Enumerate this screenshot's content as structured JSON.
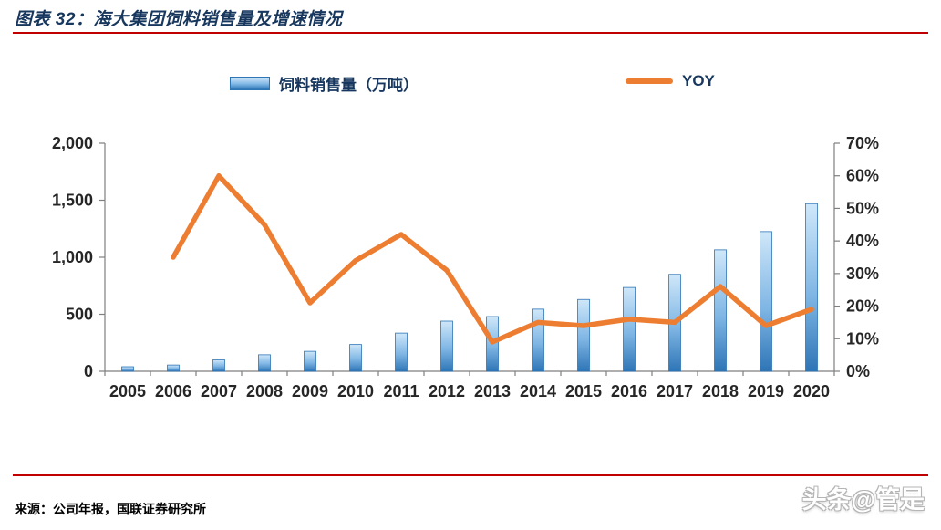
{
  "header": {
    "title": "图表 32：海大集团饲料销售量及增速情况"
  },
  "footer": {
    "source": "来源：公司年报，国联证券研究所",
    "watermark": "头条@管是"
  },
  "colors": {
    "rule_red": "#C00000",
    "title_navy": "#17375E",
    "bar_fill_top": "#cfe7f9",
    "bar_fill_bottom": "#2e75b6",
    "bar_border": "#2e75b6",
    "line_orange": "#ED7D31",
    "axis_gray": "#7f7f7f"
  },
  "chart_data": {
    "type": "bar",
    "combo": "bar series on left axis + line series on right axis",
    "title": "海大集团饲料销售量及增速情况",
    "grid": false,
    "legend_position": "top",
    "categories": [
      "2005",
      "2006",
      "2007",
      "2008",
      "2009",
      "2010",
      "2011",
      "2012",
      "2013",
      "2014",
      "2015",
      "2016",
      "2017",
      "2018",
      "2019",
      "2020"
    ],
    "series": [
      {
        "name": "饲料销售量（万吨）",
        "type": "bar",
        "axis": "left",
        "values": [
          40,
          55,
          100,
          145,
          175,
          235,
          335,
          440,
          480,
          545,
          630,
          735,
          850,
          1065,
          1225,
          1470
        ]
      },
      {
        "name": "YOY",
        "type": "line",
        "axis": "right",
        "unit": "%",
        "values": [
          null,
          35,
          60,
          45,
          21,
          34,
          42,
          31,
          9,
          15,
          14,
          16,
          15,
          26,
          14,
          19
        ]
      }
    ],
    "left_axis": {
      "min": 0,
      "max": 2000,
      "tick_values": [
        0,
        500,
        1000,
        1500,
        2000
      ],
      "tick_labels": [
        "0",
        "500",
        "1,000",
        "1,500",
        "2,000"
      ]
    },
    "right_axis": {
      "min": 0,
      "max": 70,
      "tick_values": [
        0,
        10,
        20,
        30,
        40,
        50,
        60,
        70
      ],
      "tick_labels": [
        "0%",
        "10%",
        "20%",
        "30%",
        "40%",
        "50%",
        "60%",
        "70%"
      ]
    }
  }
}
